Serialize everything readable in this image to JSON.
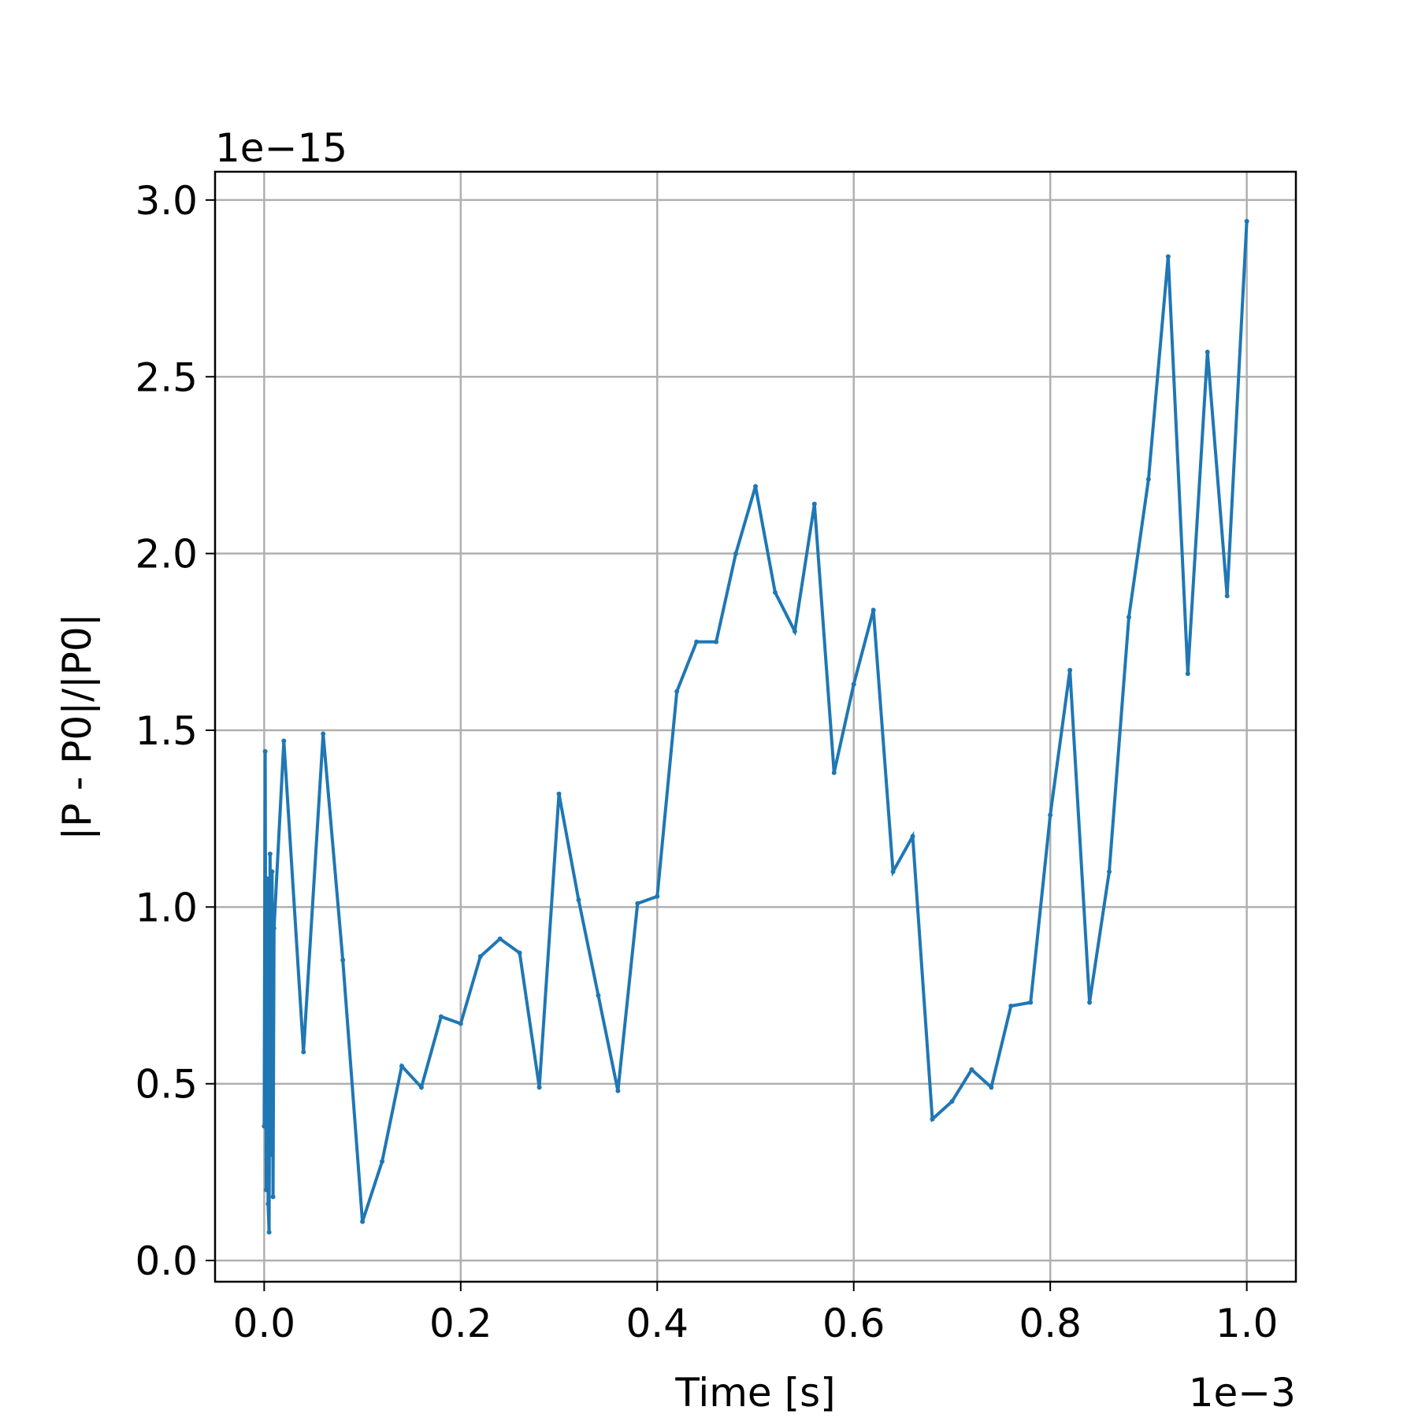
{
  "chart_data": {
    "type": "line",
    "xlabel": "Time [s]",
    "ylabel": "|P - P0|/|P0|",
    "x_offset_label": "1e−3",
    "y_offset_label": "1e−15",
    "x_scale": 0.001,
    "y_scale": 1e-15,
    "xlim": [
      -0.05,
      1.05
    ],
    "ylim": [
      -0.06,
      3.08
    ],
    "x_ticks": [
      0.0,
      0.2,
      0.4,
      0.6,
      0.8,
      1.0
    ],
    "x_tick_labels": [
      "0.0",
      "0.2",
      "0.4",
      "0.6",
      "0.8",
      "1.0"
    ],
    "y_ticks": [
      0.0,
      0.5,
      1.0,
      1.5,
      2.0,
      2.5,
      3.0
    ],
    "y_tick_labels": [
      "0.0",
      "0.5",
      "1.0",
      "1.5",
      "2.0",
      "2.5",
      "3.0"
    ],
    "grid": true,
    "line_color": "#1f77b4",
    "series": [
      {
        "x": [
          0.0,
          0.001,
          0.002,
          0.003,
          0.004,
          0.005,
          0.006,
          0.007,
          0.008,
          0.009,
          0.01,
          0.02,
          0.04,
          0.06,
          0.08,
          0.1,
          0.12,
          0.14,
          0.16,
          0.18,
          0.2,
          0.22,
          0.24,
          0.26,
          0.28,
          0.3,
          0.32,
          0.34,
          0.36,
          0.38,
          0.4,
          0.42,
          0.44,
          0.46,
          0.48,
          0.5,
          0.52,
          0.54,
          0.56,
          0.58,
          0.6,
          0.62,
          0.64,
          0.66,
          0.68,
          0.7,
          0.72,
          0.74,
          0.76,
          0.78,
          0.8,
          0.82,
          0.84,
          0.86,
          0.88,
          0.9,
          0.92,
          0.94,
          0.96,
          0.98,
          1.0
        ],
        "y": [
          0.38,
          1.44,
          0.2,
          1.08,
          0.16,
          0.08,
          1.15,
          0.3,
          1.1,
          0.18,
          0.94,
          1.47,
          0.59,
          1.49,
          0.85,
          0.11,
          0.28,
          0.55,
          0.49,
          0.69,
          0.67,
          0.86,
          0.91,
          0.87,
          0.49,
          1.32,
          1.02,
          0.75,
          0.48,
          1.01,
          1.03,
          1.61,
          1.75,
          1.75,
          2.0,
          2.19,
          1.89,
          1.78,
          2.14,
          1.38,
          1.63,
          1.84,
          1.1,
          1.2,
          0.4,
          0.45,
          0.54,
          0.49,
          0.72,
          0.73,
          1.26,
          1.67,
          0.73,
          1.1,
          1.82,
          2.21,
          2.84,
          1.66,
          2.57,
          1.88,
          2.94
        ]
      }
    ]
  }
}
